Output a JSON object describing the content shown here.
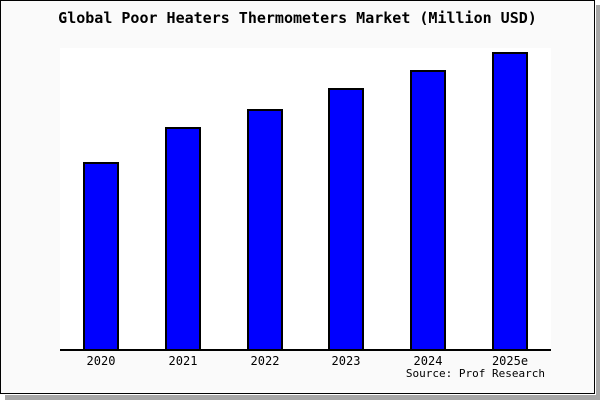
{
  "frame": {
    "background_color": "#fafafa",
    "plot_background_color": "#ffffff",
    "border_color": "#000000",
    "shadow_color": "#a6a6a6"
  },
  "chart_data": {
    "type": "bar",
    "title": "Global Poor Heaters Thermometers Market (Million USD)",
    "categories": [
      "2020",
      "2021",
      "2022",
      "2023",
      "2024",
      "2025e"
    ],
    "values": [
      63,
      75,
      81,
      88,
      94,
      100
    ],
    "ylim": [
      0,
      101.5
    ],
    "xlabel": "",
    "ylabel": "",
    "grid": false,
    "y_axis_visible": false,
    "legend": "none",
    "bar_color": "#0000ff",
    "bar_border_color": "#000000",
    "source_label": "Source: Prof Research"
  }
}
